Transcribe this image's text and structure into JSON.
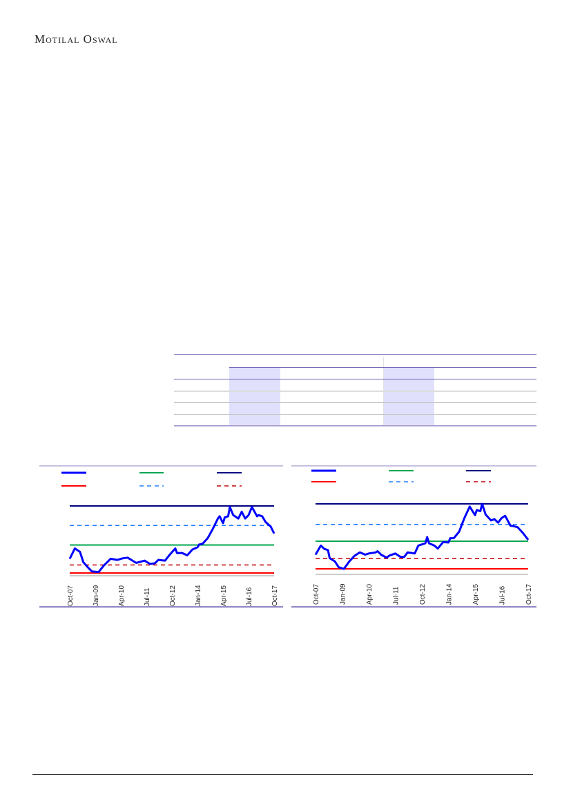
{
  "header": {
    "logo_text": "Motilal Oswal"
  },
  "colors": {
    "series": "#0000ff",
    "average": "#00a550",
    "max": "#000080",
    "min": "#ff0000",
    "plus_1sd": "#1e7bff",
    "minus_1sd": "#c00000",
    "table_rule": "#6a5fb0",
    "table_shade": "#e0e0fc"
  },
  "chart_data": [
    {
      "type": "line",
      "x_tick_labels": [
        "Oct-07",
        "Jan-09",
        "Apr-10",
        "Jul-11",
        "Oct-12",
        "Jan-14",
        "Apr-15",
        "Jul-16",
        "Oct-17"
      ],
      "xlim": [
        "2007-10",
        "2017-10"
      ],
      "ylim": [
        0,
        100
      ],
      "grid": false,
      "legend_placement": "top",
      "reference_lines": {
        "max": 100,
        "plus_1sd": 70.9,
        "average": 41.8,
        "minus_1sd": 12,
        "min": 0
      },
      "series": [
        {
          "x": [
            "2007-10",
            "2008-01",
            "2008-04",
            "2008-06",
            "2008-09",
            "2008-11",
            "2009-03",
            "2009-06",
            "2009-10",
            "2010-02",
            "2010-05",
            "2010-08",
            "2011-01",
            "2011-06",
            "2011-09",
            "2011-12",
            "2012-02",
            "2012-06",
            "2012-09",
            "2012-12",
            "2013-01",
            "2013-04",
            "2013-07",
            "2013-10",
            "2014-01",
            "2014-02",
            "2014-04",
            "2014-07",
            "2014-10",
            "2015-01",
            "2015-02",
            "2015-04",
            "2015-05",
            "2015-07",
            "2015-08",
            "2015-10",
            "2016-01",
            "2016-03",
            "2016-05",
            "2016-07",
            "2016-09",
            "2016-12",
            "2017-01",
            "2017-03",
            "2017-05",
            "2017-08",
            "2017-10"
          ],
          "y": [
            21.2,
            36.6,
            31.5,
            16.1,
            7.5,
            2.4,
            1.4,
            11,
            21.2,
            19.5,
            21.9,
            22.9,
            15.1,
            18.5,
            13.7,
            14.4,
            19.5,
            18.5,
            28.1,
            36.6,
            29.8,
            29.8,
            26.4,
            34.9,
            38.4,
            42.5,
            43.5,
            52,
            65.8,
            81.2,
            84.6,
            74.3,
            82.9,
            84.6,
            98.3,
            86.3,
            81.2,
            91.4,
            81.2,
            86.3,
            98.3,
            84.6,
            86.3,
            84.6,
            76,
            69.2,
            58.9
          ]
        }
      ]
    },
    {
      "type": "line",
      "x_tick_labels": [
        "Oct-07",
        "Jan-09",
        "Apr-10",
        "Jul-11",
        "Oct-12",
        "Jan-14",
        "Apr-15",
        "Jul-16",
        "Oct-17"
      ],
      "xlim": [
        "2007-10",
        "2017-10"
      ],
      "ylim": [
        0,
        100
      ],
      "grid": false,
      "legend_placement": "top",
      "reference_lines": {
        "max": 100,
        "plus_1sd": 68.3,
        "average": 42.6,
        "minus_1sd": 15.8,
        "min": 0
      },
      "series": [
        {
          "x": [
            "2007-10",
            "2008-01",
            "2008-03",
            "2008-05",
            "2008-06",
            "2008-09",
            "2008-11",
            "2009-02",
            "2009-05",
            "2009-08",
            "2009-11",
            "2010-02",
            "2010-04",
            "2010-08",
            "2010-09",
            "2010-11",
            "2011-02",
            "2011-04",
            "2011-07",
            "2011-10",
            "2011-12",
            "2012-02",
            "2012-06",
            "2012-08",
            "2012-12",
            "2013-01",
            "2013-02",
            "2013-05",
            "2013-07",
            "2013-10",
            "2014-01",
            "2014-02",
            "2014-04",
            "2014-07",
            "2014-10",
            "2015-01",
            "2015-04",
            "2015-05",
            "2015-07",
            "2015-08",
            "2015-10",
            "2016-01",
            "2016-03",
            "2016-05",
            "2016-07",
            "2016-09",
            "2016-12",
            "2017-01",
            "2017-04",
            "2017-07",
            "2017-10"
          ],
          "y": [
            21.8,
            35.9,
            30.6,
            28.9,
            16.5,
            11.3,
            2.5,
            0,
            11.3,
            20.1,
            25.4,
            21.8,
            23.6,
            25.4,
            27.1,
            21.8,
            17.3,
            20.8,
            23.6,
            18.3,
            18.3,
            25.4,
            23.6,
            35.9,
            39.4,
            48.9,
            39.4,
            35.9,
            31.3,
            41.2,
            40.5,
            47.2,
            47.2,
            57,
            78.2,
            95.8,
            82.7,
            90.5,
            88.7,
            100,
            83.5,
            74.6,
            76.4,
            71.1,
            78.2,
            81.7,
            66.5,
            66.2,
            64.1,
            55.3,
            44.7
          ]
        }
      ]
    }
  ]
}
